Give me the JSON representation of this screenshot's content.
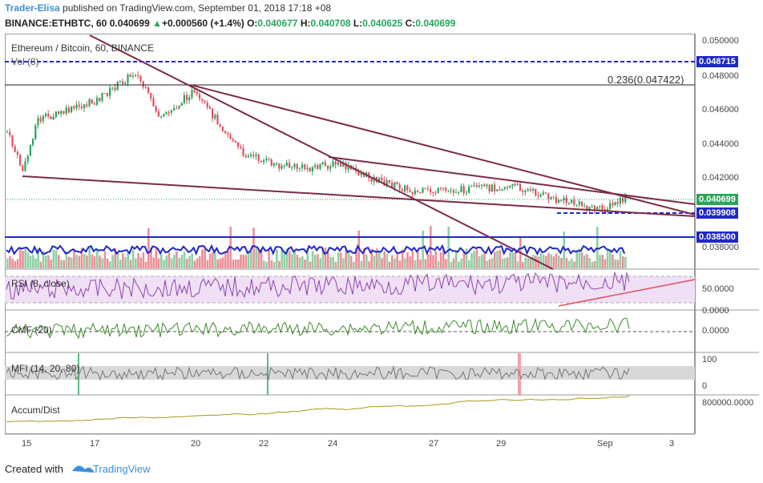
{
  "header": {
    "user": "Trader-Elisa",
    "published": "published on TradingView.com, September 01, 2018 17:18 +08",
    "symbol": "BINANCE:ETHBTC, 60",
    "last": "0.040699",
    "change_arrow": "▲",
    "change": "+0.000560 (+1.4%)",
    "o_label": "O:",
    "o": "0.040677",
    "h_label": "H:",
    "h": "0.040708",
    "l_label": "L:",
    "l": "0.040625",
    "c_label": "C:",
    "c": "0.040699"
  },
  "chart": {
    "title": "Ethereum / Bitcoin, 60, BINANCE",
    "volume_label": "Vol (8)",
    "fib_label": "0.236(0.047422)",
    "price_ticks": [
      "0.050000",
      "0.048000",
      "0.046000",
      "0.044000",
      "0.042000",
      "0.038000"
    ],
    "tags": {
      "level1": "0.048715",
      "current": "0.040699",
      "level2": "0.039908",
      "level3": "0.038500"
    },
    "colors": {
      "up": "#26a65b",
      "down": "#e0505e",
      "trend": "#7a2b4a",
      "level": "#1f28c8",
      "rsi": "#8e44ad",
      "cmf": "#3d8a2a",
      "accum": "#a89a1e"
    }
  },
  "rsi": {
    "label": "RSI (8, close)",
    "ticks": [
      "50.0000",
      "0.0000"
    ]
  },
  "cmf": {
    "label": "CMF (20)",
    "ticks": [
      "0.0000"
    ]
  },
  "mfi": {
    "label": "MFI (14, 20, 80)",
    "ticks": [
      "100",
      "0"
    ]
  },
  "accum": {
    "label": "Accum/Dist",
    "ticks": [
      "800000.0000"
    ]
  },
  "xaxis": {
    "ticks": [
      "15",
      "17",
      "20",
      "22",
      "24",
      "27",
      "29",
      "Sep",
      "3"
    ]
  },
  "footer": {
    "created": "Created with",
    "brand": "TradingView"
  }
}
